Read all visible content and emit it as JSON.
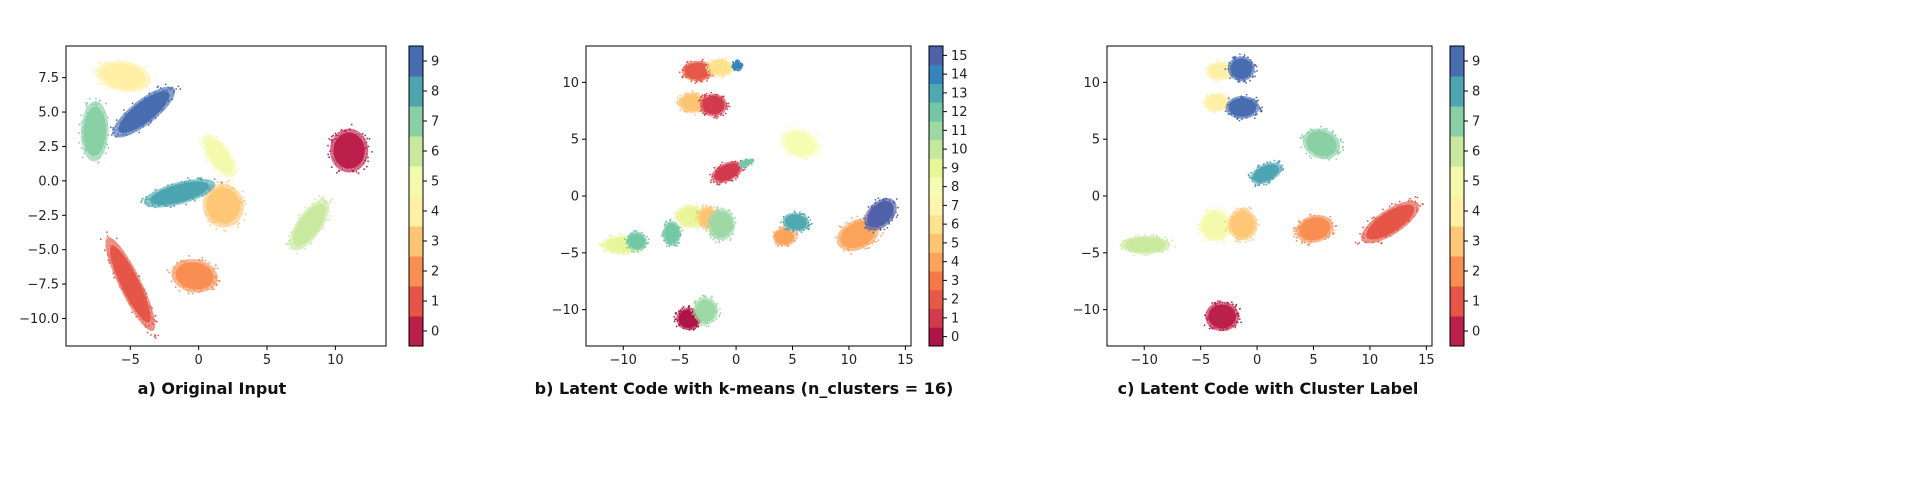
{
  "chart_data": [
    {
      "type": "scatter",
      "caption": "a) Original Input",
      "xticks": [
        -5,
        0,
        5,
        10
      ],
      "yticks": [
        7.5,
        5.0,
        2.5,
        0.0,
        -2.5,
        -5.0,
        -7.5,
        -10.0
      ],
      "xlim": [
        -9.7,
        13.7
      ],
      "ylim": [
        -12.0,
        9.8
      ],
      "colorbar": {
        "levels": 10,
        "ticks": [
          "0",
          "1",
          "2",
          "3",
          "4",
          "5",
          "6",
          "7",
          "8",
          "9"
        ]
      },
      "clusters": [
        {
          "label": 0,
          "cx": 11.0,
          "cy": 2.2,
          "rx": 1.4,
          "ry": 1.6,
          "angle": 0
        },
        {
          "label": 1,
          "cx": -5.0,
          "cy": -7.5,
          "rx": 3.8,
          "ry": 0.8,
          "angle": -64
        },
        {
          "label": 2,
          "cx": -0.3,
          "cy": -6.9,
          "rx": 1.7,
          "ry": 1.2,
          "angle": -10
        },
        {
          "label": 3,
          "cx": 1.8,
          "cy": -1.8,
          "rx": 1.5,
          "ry": 1.6,
          "angle": 15
        },
        {
          "label": 4,
          "cx": -5.5,
          "cy": 7.6,
          "rx": 2.0,
          "ry": 1.1,
          "angle": -10
        },
        {
          "label": 5,
          "cx": 1.5,
          "cy": 1.8,
          "rx": 1.8,
          "ry": 0.8,
          "angle": -55
        },
        {
          "label": 6,
          "cx": 8.1,
          "cy": -3.2,
          "rx": 2.2,
          "ry": 0.9,
          "angle": 55
        },
        {
          "label": 7,
          "cx": -7.6,
          "cy": 3.6,
          "rx": 2.2,
          "ry": 1.0,
          "angle": 88
        },
        {
          "label": 8,
          "cx": -1.4,
          "cy": -0.9,
          "rx": 2.7,
          "ry": 0.8,
          "angle": 15
        },
        {
          "label": 9,
          "cx": -4.0,
          "cy": 5.0,
          "rx": 2.8,
          "ry": 0.9,
          "angle": 38
        }
      ]
    },
    {
      "type": "scatter",
      "caption": "b) Latent Code with k-means (n_clusters = 16)",
      "xticks": [
        -10,
        -5,
        0,
        5,
        10,
        15
      ],
      "yticks": [
        10,
        5,
        0,
        -5,
        -10
      ],
      "xlim": [
        -13.3,
        15.5
      ],
      "ylim": [
        -13.2,
        13.2
      ],
      "colorbar": {
        "levels": 16,
        "ticks": [
          "0",
          "1",
          "2",
          "3",
          "4",
          "5",
          "6",
          "7",
          "8",
          "9",
          "10",
          "11",
          "12",
          "13",
          "14",
          "15"
        ]
      },
      "clusters": [
        {
          "label": 2,
          "cx": -3.4,
          "cy": 11.0,
          "rx": 1.4,
          "ry": 0.9,
          "angle": 0
        },
        {
          "label": 6,
          "cx": -1.4,
          "cy": 11.3,
          "rx": 1.1,
          "ry": 0.8,
          "angle": 0
        },
        {
          "label": 14,
          "cx": 0.1,
          "cy": 11.5,
          "rx": 0.4,
          "ry": 0.4,
          "angle": 0
        },
        {
          "label": 5,
          "cx": -3.9,
          "cy": 8.2,
          "rx": 1.2,
          "ry": 0.9,
          "angle": 0
        },
        {
          "label": 1,
          "cx": -2.0,
          "cy": 8.0,
          "rx": 1.2,
          "ry": 1.0,
          "angle": 0
        },
        {
          "label": 8,
          "cx": 5.7,
          "cy": 4.6,
          "rx": 1.7,
          "ry": 1.2,
          "angle": -20
        },
        {
          "label": 1,
          "cx": -0.8,
          "cy": 2.1,
          "rx": 1.5,
          "ry": 0.8,
          "angle": 25
        },
        {
          "label": 12,
          "cx": 0.9,
          "cy": 2.9,
          "rx": 0.6,
          "ry": 0.3,
          "angle": 20
        },
        {
          "label": 9,
          "cx": -4.1,
          "cy": -1.8,
          "rx": 1.3,
          "ry": 1.0,
          "angle": 0
        },
        {
          "label": 5,
          "cx": -2.5,
          "cy": -1.9,
          "rx": 0.9,
          "ry": 1.0,
          "angle": 0
        },
        {
          "label": 12,
          "cx": -5.7,
          "cy": -3.3,
          "rx": 0.8,
          "ry": 1.1,
          "angle": 0
        },
        {
          "label": 11,
          "cx": -1.3,
          "cy": -2.5,
          "rx": 1.2,
          "ry": 1.4,
          "angle": 0
        },
        {
          "label": 9,
          "cx": -10.1,
          "cy": -4.3,
          "rx": 1.8,
          "ry": 0.8,
          "angle": 0
        },
        {
          "label": 12,
          "cx": -8.8,
          "cy": -4.0,
          "rx": 0.9,
          "ry": 0.8,
          "angle": 0
        },
        {
          "label": 4,
          "cx": 4.3,
          "cy": -3.6,
          "rx": 1.0,
          "ry": 0.8,
          "angle": 0
        },
        {
          "label": 13,
          "cx": 5.3,
          "cy": -2.3,
          "rx": 1.2,
          "ry": 0.8,
          "angle": -10
        },
        {
          "label": 4,
          "cx": 10.8,
          "cy": -3.4,
          "rx": 2.0,
          "ry": 1.3,
          "angle": 25
        },
        {
          "label": 15,
          "cx": 12.8,
          "cy": -1.6,
          "rx": 1.7,
          "ry": 1.1,
          "angle": 45
        },
        {
          "label": 0,
          "cx": -4.2,
          "cy": -10.8,
          "rx": 1.1,
          "ry": 1.0,
          "angle": 0
        },
        {
          "label": 11,
          "cx": -2.7,
          "cy": -10.1,
          "rx": 1.1,
          "ry": 1.2,
          "angle": 0
        }
      ]
    },
    {
      "type": "scatter",
      "caption": "c) Latent Code with Cluster Label",
      "xticks": [
        -10,
        -5,
        0,
        5,
        10,
        15
      ],
      "yticks": [
        10,
        5,
        0,
        -5,
        -10
      ],
      "xlim": [
        -13.3,
        15.5
      ],
      "ylim": [
        -13.2,
        13.2
      ],
      "colorbar": {
        "levels": 10,
        "ticks": [
          "0",
          "1",
          "2",
          "3",
          "4",
          "5",
          "6",
          "7",
          "8",
          "9"
        ]
      },
      "clusters": [
        {
          "label": 4,
          "cx": -3.3,
          "cy": 11.0,
          "rx": 1.2,
          "ry": 0.8,
          "angle": 0
        },
        {
          "label": 9,
          "cx": -1.4,
          "cy": 11.2,
          "rx": 1.2,
          "ry": 1.1,
          "angle": 0
        },
        {
          "label": 4,
          "cx": -3.6,
          "cy": 8.2,
          "rx": 1.1,
          "ry": 0.8,
          "angle": 0
        },
        {
          "label": 9,
          "cx": -1.3,
          "cy": 7.8,
          "rx": 1.5,
          "ry": 1.0,
          "angle": 0
        },
        {
          "label": 7,
          "cx": 5.7,
          "cy": 4.6,
          "rx": 1.7,
          "ry": 1.3,
          "angle": -20
        },
        {
          "label": 8,
          "cx": 0.8,
          "cy": 2.0,
          "rx": 1.5,
          "ry": 0.8,
          "angle": 25
        },
        {
          "label": 5,
          "cx": -3.7,
          "cy": -2.6,
          "rx": 1.4,
          "ry": 1.4,
          "angle": 0
        },
        {
          "label": 3,
          "cx": -1.3,
          "cy": -2.5,
          "rx": 1.3,
          "ry": 1.4,
          "angle": 0
        },
        {
          "label": 6,
          "cx": -9.9,
          "cy": -4.3,
          "rx": 2.2,
          "ry": 0.8,
          "angle": 0
        },
        {
          "label": 2,
          "cx": 5.1,
          "cy": -2.9,
          "rx": 1.7,
          "ry": 1.2,
          "angle": 15
        },
        {
          "label": 1,
          "cx": 11.8,
          "cy": -2.3,
          "rx": 3.0,
          "ry": 1.1,
          "angle": 33
        },
        {
          "label": 0,
          "cx": -3.1,
          "cy": -10.6,
          "rx": 1.5,
          "ry": 1.3,
          "angle": 0
        }
      ]
    }
  ]
}
